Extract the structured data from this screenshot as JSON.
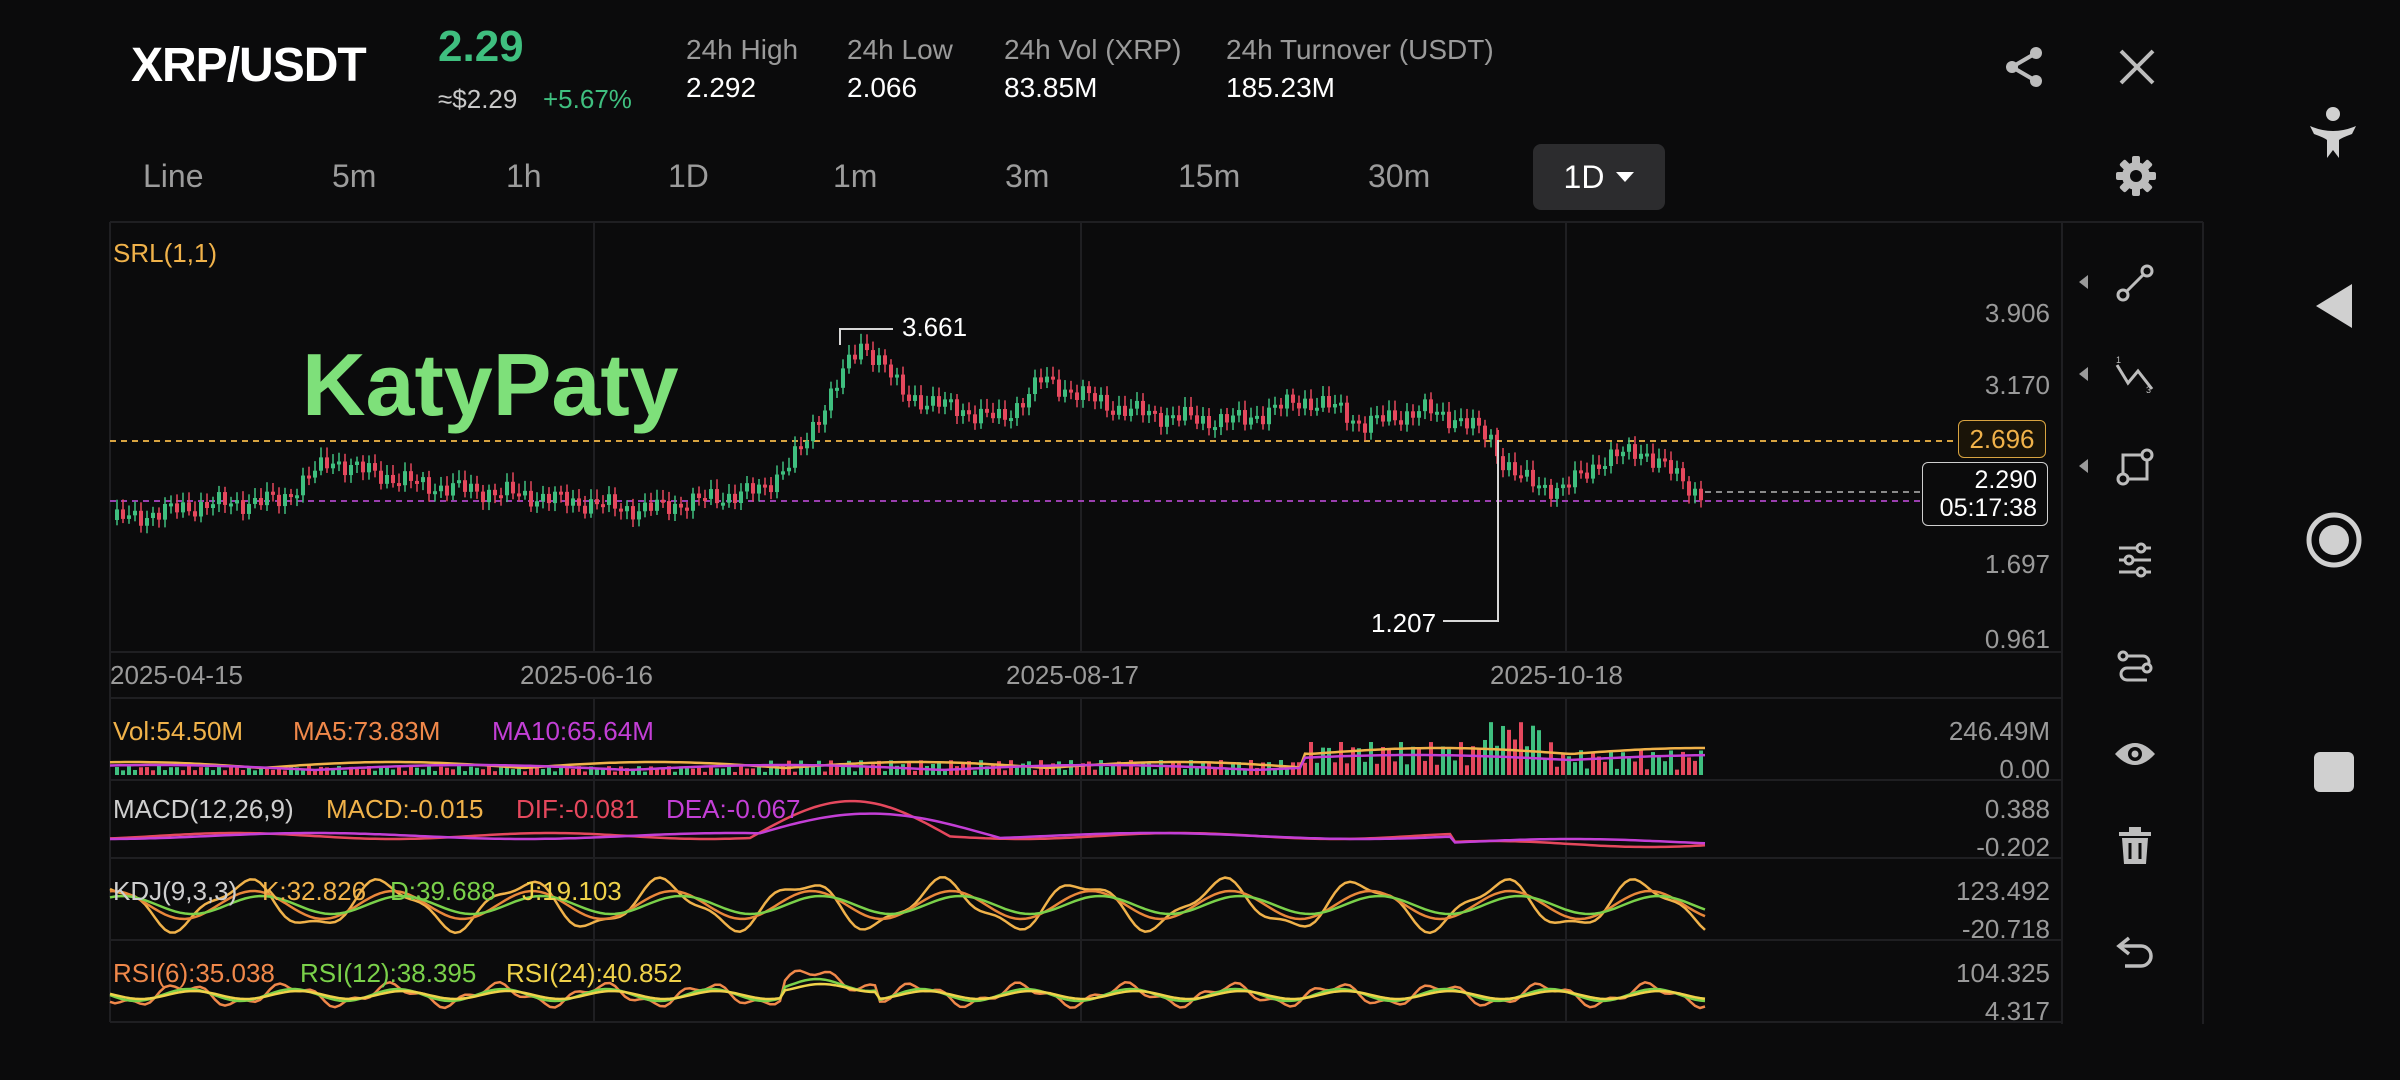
{
  "header": {
    "pair": "XRP/USDT",
    "price": "2.29",
    "approx": "≈$2.29",
    "change": "+5.67%",
    "stats": [
      {
        "label": "24h High",
        "value": "2.292"
      },
      {
        "label": "24h Low",
        "value": "2.066"
      },
      {
        "label": "24h Vol (XRP)",
        "value": "83.85M"
      },
      {
        "label": "24h Turnover (USDT)",
        "value": "185.23M"
      }
    ],
    "icons": [
      "share-icon",
      "close-icon"
    ]
  },
  "timeframes": [
    "Line",
    "5m",
    "1h",
    "1D",
    "1m",
    "3m",
    "15m",
    "30m"
  ],
  "active_timeframe": "1D",
  "chart": {
    "indicator_label": "SRL(1,1)",
    "watermark": "KatyPaty",
    "y_ticks": [
      "3.906",
      "3.170",
      "1.697",
      "0.961"
    ],
    "high_marker": "3.661",
    "low_marker": "1.207",
    "srl_level": "2.696",
    "current_price": "2.290",
    "countdown": "05:17:38",
    "dates": [
      "2025-04-15",
      "2025-06-16",
      "2025-08-17",
      "2025-10-18"
    ]
  },
  "volume": {
    "vol": "Vol:54.50M",
    "ma5": "MA5:73.83M",
    "ma10": "MA10:65.64M",
    "max": "246.49M",
    "min": "0.00"
  },
  "macd": {
    "label": "MACD(12,26,9)",
    "macd": "MACD:-0.015",
    "dif": "DIF:-0.081",
    "dea": "DEA:-0.067",
    "max": "0.388",
    "min": "-0.202"
  },
  "kdj": {
    "label": "KDJ(9,3,3)",
    "k": "K:32.826",
    "d": "D:39.688",
    "j": "J:19.103",
    "max": "123.492",
    "min": "-20.718"
  },
  "rsi": {
    "rsi6": "RSI(6):35.038",
    "rsi12": "RSI(12):38.395",
    "rsi24": "RSI(24):40.852",
    "max": "104.325",
    "min": "4.317"
  },
  "colors": {
    "up": "#3fbf7f",
    "down": "#e5485d",
    "accent_yellow": "#f0b24a",
    "magenta": "#c33fd6"
  },
  "toolbar_icons": [
    "trend-line-icon",
    "fib-icon",
    "shape-icon",
    "indicator-settings-icon",
    "chain-icon",
    "eye-icon",
    "trash-icon",
    "undo-icon"
  ],
  "system_nav": [
    "accessibility-icon",
    "back-icon",
    "home-icon",
    "recents-icon"
  ]
}
